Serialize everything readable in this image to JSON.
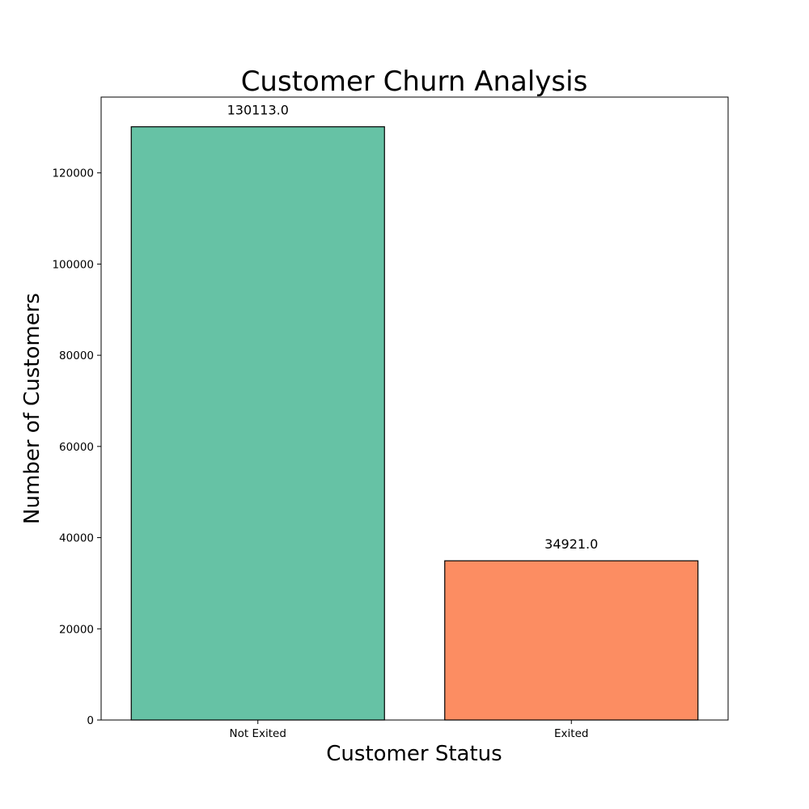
{
  "chart_data": {
    "type": "bar",
    "title": "Customer Churn Analysis",
    "xlabel": "Customer Status",
    "ylabel": "Number of Customers",
    "categories": [
      "Not Exited",
      "Exited"
    ],
    "values": [
      130113,
      34921
    ],
    "value_labels": [
      "130113.0",
      "34921.0"
    ],
    "colors": [
      "#66c2a5",
      "#fc8d62"
    ],
    "edge_color": "#000000",
    "ylim": [
      0,
      136624
    ],
    "yticks": [
      0,
      20000,
      40000,
      60000,
      80000,
      100000,
      120000
    ],
    "ytick_labels": [
      "0",
      "20000",
      "40000",
      "60000",
      "80000",
      "100000",
      "120000"
    ],
    "grid": false,
    "legend": "none"
  }
}
